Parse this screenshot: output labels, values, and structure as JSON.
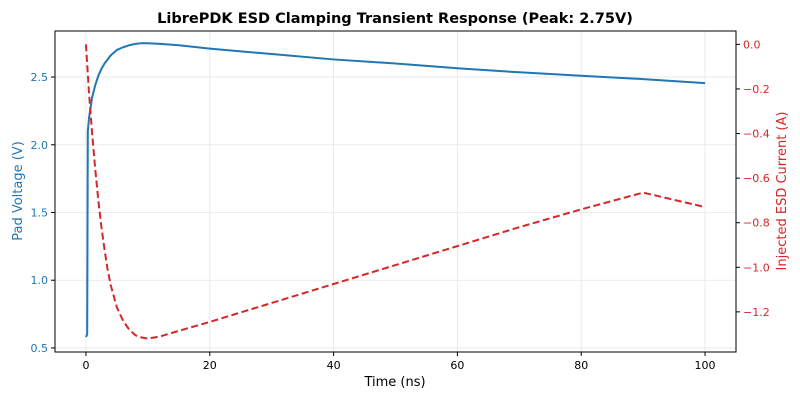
{
  "chart_data": {
    "type": "line",
    "title": "LibrePDK ESD Clamping Transient Response (Peak: 2.75V)",
    "xlabel": "Time (ns)",
    "ylabel_left": "Pad Voltage (V)",
    "ylabel_right": "Injected ESD Current (A)",
    "xlim": [
      -5,
      105
    ],
    "ylim_left": [
      0.47,
      2.84
    ],
    "ylim_right": [
      -1.38,
      0.06
    ],
    "xticks": [
      0,
      20,
      40,
      60,
      80,
      100
    ],
    "yticks_left": [
      0.5,
      1.0,
      1.5,
      2.0,
      2.5
    ],
    "yticks_right": [
      0.0,
      -0.2,
      -0.4,
      -0.6,
      -0.8,
      -1.0,
      -1.2
    ],
    "grid": true,
    "colors": {
      "voltage": "#1f77b4",
      "current": "#d62728"
    },
    "series": [
      {
        "axis": "left",
        "style": "solid",
        "x": [
          0,
          0.2,
          0.3,
          0.5,
          1,
          1.5,
          2,
          2.5,
          3,
          4,
          5,
          6,
          7,
          8,
          9,
          10,
          12,
          15,
          20,
          30,
          40,
          50,
          60,
          70,
          80,
          90,
          100
        ],
        "y": [
          0.58,
          0.6,
          2.1,
          2.2,
          2.35,
          2.44,
          2.51,
          2.56,
          2.6,
          2.66,
          2.7,
          2.72,
          2.735,
          2.745,
          2.75,
          2.75,
          2.745,
          2.735,
          2.71,
          2.67,
          2.63,
          2.6,
          2.565,
          2.535,
          2.51,
          2.485,
          2.455
        ]
      },
      {
        "axis": "right",
        "style": "dashed",
        "x": [
          0,
          0.5,
          1,
          1.5,
          2,
          2.5,
          3,
          3.5,
          4,
          5,
          6,
          7,
          8,
          9,
          10,
          12,
          15,
          20,
          30,
          40,
          50,
          60,
          70,
          80,
          90,
          100
        ],
        "y": [
          0.0,
          -0.22,
          -0.4,
          -0.56,
          -0.7,
          -0.82,
          -0.92,
          -1.01,
          -1.08,
          -1.18,
          -1.24,
          -1.28,
          -1.305,
          -1.315,
          -1.32,
          -1.31,
          -1.285,
          -1.245,
          -1.16,
          -1.075,
          -0.99,
          -0.905,
          -0.82,
          -0.74,
          -0.665,
          -0.73
        ]
      }
    ]
  }
}
